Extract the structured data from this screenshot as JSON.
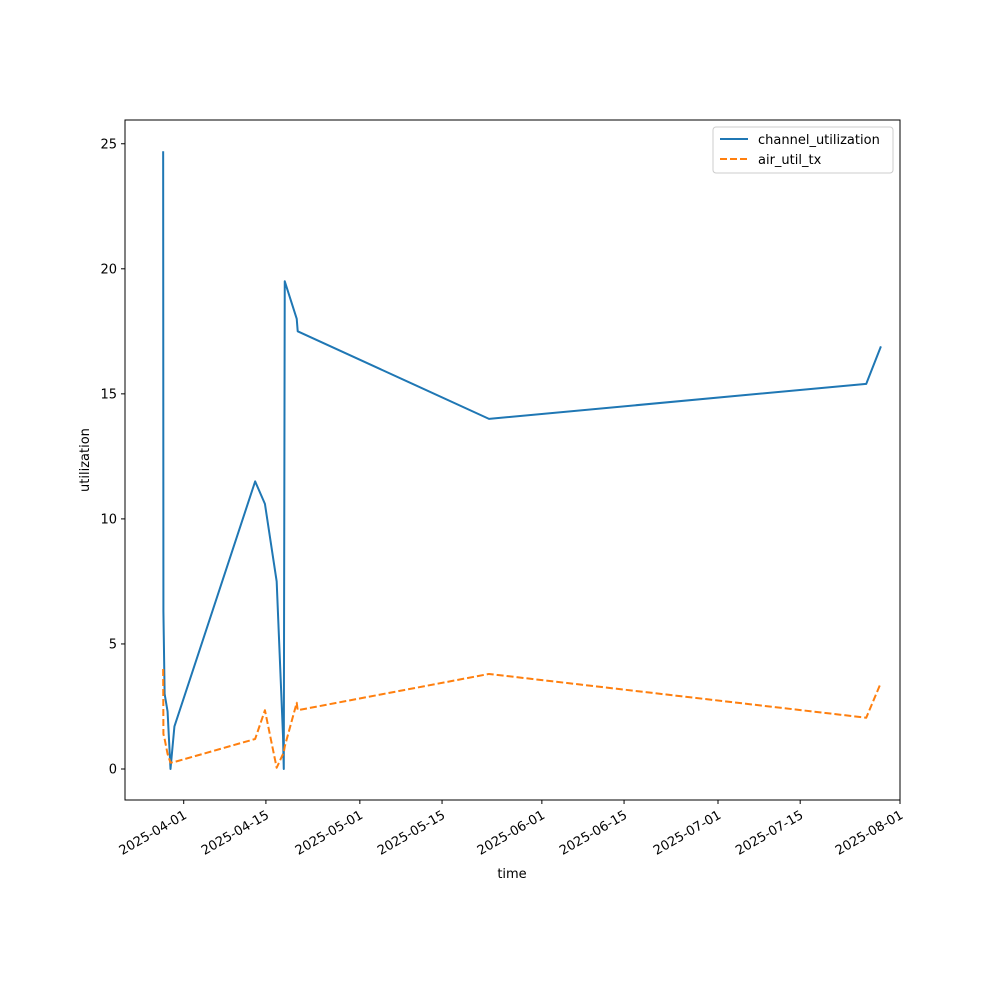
{
  "chart_data": {
    "type": "line",
    "title": "",
    "xlabel": "time",
    "ylabel": "utilization",
    "xlim": [
      "2025-03-22",
      "2025-08-01"
    ],
    "ylim": [
      -1.24,
      25.95
    ],
    "x_ticks": [
      "2025-04-01",
      "2025-04-15",
      "2025-05-01",
      "2025-05-15",
      "2025-06-01",
      "2025-06-15",
      "2025-07-01",
      "2025-07-15",
      "2025-08-01"
    ],
    "y_ticks": [
      0,
      5,
      10,
      15,
      20,
      25
    ],
    "grid": false,
    "legend_position": "top-right",
    "series": [
      {
        "name": "channel_utilization",
        "color": "#1f77b4",
        "line_style": "solid",
        "points": [
          [
            "2025-03-28T12:00",
            24.7
          ],
          [
            "2025-03-28T13:00",
            6.3
          ],
          [
            "2025-03-28T18:00",
            3.0
          ],
          [
            "2025-03-29T06:00",
            2.3
          ],
          [
            "2025-03-29T18:00",
            0.0
          ],
          [
            "2025-03-30T10:00",
            1.7
          ],
          [
            "2025-04-13T04:00",
            11.5
          ],
          [
            "2025-04-14T20:00",
            10.6
          ],
          [
            "2025-04-16T20:00",
            7.5
          ],
          [
            "2025-04-17T22:00",
            1.3
          ],
          [
            "2025-04-18T01:00",
            0.0
          ],
          [
            "2025-04-18T05:00",
            19.5
          ],
          [
            "2025-04-20T06:00",
            18.0
          ],
          [
            "2025-04-20T10:00",
            17.5
          ],
          [
            "2025-05-23T00:00",
            14.0
          ],
          [
            "2025-07-26T06:00",
            15.4
          ],
          [
            "2025-07-28T18:00",
            16.9
          ]
        ]
      },
      {
        "name": "air_util_tx",
        "color": "#ff7f0e",
        "line_style": "dashed",
        "points": [
          [
            "2025-03-28T12:00",
            4.0
          ],
          [
            "2025-03-28T13:00",
            1.4
          ],
          [
            "2025-03-28T18:00",
            1.2
          ],
          [
            "2025-03-29T06:00",
            0.6
          ],
          [
            "2025-03-29T18:00",
            0.25
          ],
          [
            "2025-03-30T10:00",
            0.28
          ],
          [
            "2025-04-13T04:00",
            1.2
          ],
          [
            "2025-04-14T20:00",
            2.35
          ],
          [
            "2025-04-16T20:00",
            0.05
          ],
          [
            "2025-04-17T22:00",
            0.6
          ],
          [
            "2025-04-18T01:00",
            0.65
          ],
          [
            "2025-04-18T05:00",
            0.9
          ],
          [
            "2025-04-20T06:00",
            2.65
          ],
          [
            "2025-04-20T10:00",
            2.35
          ],
          [
            "2025-05-23T00:00",
            3.8
          ],
          [
            "2025-07-26T06:00",
            2.05
          ],
          [
            "2025-07-28T18:00",
            3.45
          ]
        ]
      }
    ]
  }
}
